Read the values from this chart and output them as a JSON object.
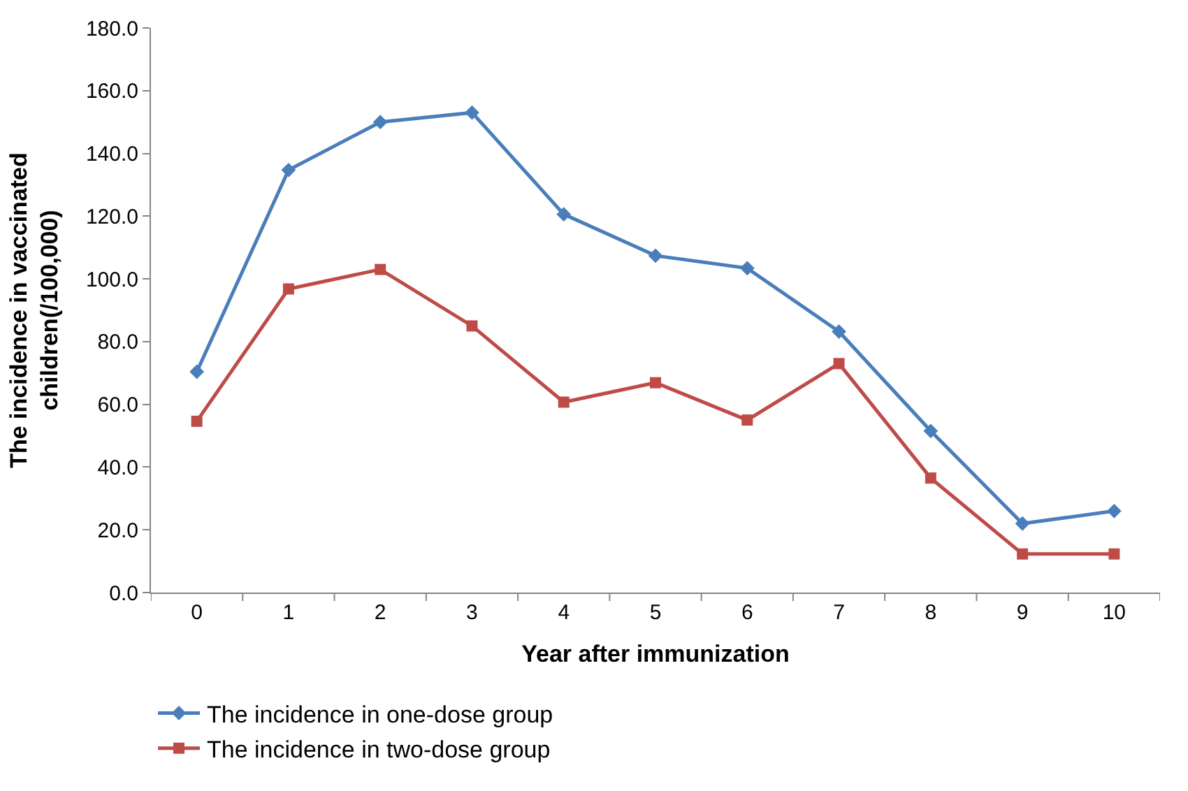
{
  "chart_data": {
    "type": "line",
    "xlabel": "Year after immunization",
    "ylabel": "The incidence in vaccinated children(/100,000)",
    "categories": [
      "0",
      "1",
      "2",
      "3",
      "4",
      "5",
      "6",
      "7",
      "8",
      "9",
      "10"
    ],
    "series": [
      {
        "name": "The incidence in one-dose group",
        "color": "#4a7ebb",
        "marker": "diamond",
        "values": [
          70.4,
          134.7,
          150.0,
          153.0,
          120.6,
          107.4,
          103.4,
          83.2,
          51.5,
          22.0,
          26.0
        ]
      },
      {
        "name": "The incidence in two-dose group",
        "color": "#be4b48",
        "marker": "square",
        "values": [
          54.6,
          96.8,
          103.0,
          85.0,
          60.7,
          66.9,
          55.0,
          73.0,
          36.5,
          12.3,
          12.3
        ]
      }
    ],
    "ylim": [
      0,
      180
    ],
    "yticks": [
      {
        "value": 0,
        "label": "0.0"
      },
      {
        "value": 20,
        "label": "20.0"
      },
      {
        "value": 40,
        "label": "40.0"
      },
      {
        "value": 60,
        "label": "60.0"
      },
      {
        "value": 80,
        "label": "80.0"
      },
      {
        "value": 100,
        "label": "100.0"
      },
      {
        "value": 120,
        "label": "120.0"
      },
      {
        "value": 140,
        "label": "140.0"
      },
      {
        "value": 160,
        "label": "160.0"
      },
      {
        "value": 180,
        "label": "180.0"
      }
    ],
    "legend": "bottom left",
    "line_style": "solid"
  }
}
